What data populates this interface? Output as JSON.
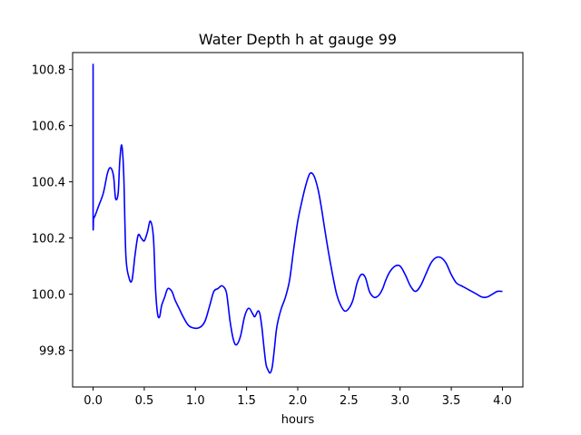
{
  "chart_data": {
    "type": "line",
    "title": "Water Depth h at gauge 99",
    "xlabel": "hours",
    "ylabel": "",
    "xlim": [
      -0.2,
      4.2
    ],
    "ylim": [
      99.67,
      100.86
    ],
    "xticks": [
      0.0,
      0.5,
      1.0,
      1.5,
      2.0,
      2.5,
      3.0,
      3.5,
      4.0
    ],
    "xtick_labels": [
      "0.0",
      "0.5",
      "1.0",
      "1.5",
      "2.0",
      "2.5",
      "3.0",
      "3.5",
      "4.0"
    ],
    "yticks": [
      99.8,
      100.0,
      100.2,
      100.4,
      100.6,
      100.8
    ],
    "ytick_labels": [
      "99.8",
      "100.0",
      "100.2",
      "100.4",
      "100.6",
      "100.8"
    ],
    "grid": false,
    "series": [
      {
        "color": "#0000ff",
        "x": [
          0.0,
          0.0,
          0.005,
          0.02,
          0.05,
          0.1,
          0.14,
          0.17,
          0.2,
          0.22,
          0.245,
          0.26,
          0.28,
          0.3,
          0.32,
          0.35,
          0.38,
          0.41,
          0.44,
          0.47,
          0.5,
          0.53,
          0.56,
          0.59,
          0.61,
          0.63,
          0.65,
          0.67,
          0.7,
          0.73,
          0.77,
          0.8,
          0.84,
          0.88,
          0.93,
          0.98,
          1.03,
          1.07,
          1.1,
          1.14,
          1.18,
          1.22,
          1.26,
          1.3,
          1.32,
          1.34,
          1.37,
          1.4,
          1.44,
          1.48,
          1.52,
          1.56,
          1.58,
          1.61,
          1.63,
          1.65,
          1.67,
          1.69,
          1.71,
          1.73,
          1.75,
          1.77,
          1.79,
          1.81,
          1.84,
          1.88,
          1.92,
          1.96,
          2.0,
          2.04,
          2.08,
          2.12,
          2.16,
          2.2,
          2.23,
          2.26,
          2.3,
          2.34,
          2.38,
          2.42,
          2.46,
          2.5,
          2.54,
          2.58,
          2.62,
          2.66,
          2.7,
          2.74,
          2.77,
          2.8,
          2.83,
          2.86,
          2.9,
          2.95,
          3.0,
          3.05,
          3.1,
          3.15,
          3.2,
          3.25,
          3.3,
          3.35,
          3.4,
          3.45,
          3.5,
          3.55,
          3.6,
          3.65,
          3.7,
          3.75,
          3.8,
          3.85,
          3.9,
          3.95,
          4.0
        ],
        "y": [
          100.82,
          100.27,
          100.27,
          100.28,
          100.31,
          100.36,
          100.43,
          100.45,
          100.42,
          100.34,
          100.36,
          100.47,
          100.53,
          100.42,
          100.14,
          100.06,
          100.05,
          100.14,
          100.21,
          100.2,
          100.19,
          100.22,
          100.26,
          100.2,
          100.02,
          99.93,
          99.92,
          99.96,
          99.99,
          100.02,
          100.01,
          99.98,
          99.95,
          99.92,
          99.89,
          99.88,
          99.88,
          99.89,
          99.91,
          99.96,
          100.01,
          100.02,
          100.03,
          100.01,
          99.96,
          99.9,
          99.84,
          99.82,
          99.85,
          99.92,
          99.95,
          99.93,
          99.92,
          99.94,
          99.93,
          99.88,
          99.81,
          99.75,
          99.73,
          99.72,
          99.74,
          99.8,
          99.87,
          99.91,
          99.95,
          99.99,
          100.05,
          100.16,
          100.26,
          100.33,
          100.39,
          100.43,
          100.42,
          100.37,
          100.31,
          100.24,
          100.15,
          100.07,
          100.0,
          99.96,
          99.94,
          99.95,
          99.98,
          100.04,
          100.07,
          100.06,
          100.01,
          99.99,
          99.99,
          100.0,
          100.02,
          100.05,
          100.08,
          100.1,
          100.1,
          100.07,
          100.03,
          100.01,
          100.03,
          100.07,
          100.11,
          100.13,
          100.13,
          100.11,
          100.07,
          100.04,
          100.03,
          100.02,
          100.01,
          100.0,
          99.99,
          99.99,
          100.0,
          100.01,
          100.01
        ]
      }
    ]
  }
}
